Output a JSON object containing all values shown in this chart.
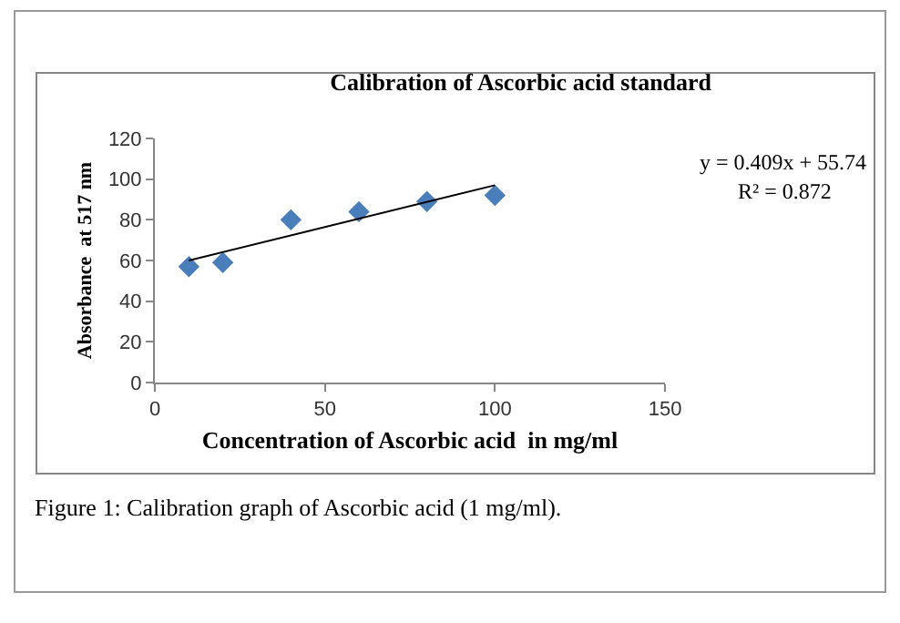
{
  "chart_data": {
    "type": "scatter",
    "title": "Calibration of Ascorbic acid standard",
    "xlabel": "Concentration of Ascorbic acid  in mg/ml",
    "ylabel": "Absorbance  at 517 nm",
    "series": [
      {
        "color": "#4a7ebb",
        "marker": "diamond",
        "x": [
          10,
          20,
          40,
          60,
          80,
          100
        ],
        "values": [
          57,
          59,
          80,
          84,
          89,
          92
        ]
      },
      {
        "type": "line",
        "color": "#000000",
        "line_style": "solid",
        "x": [
          10,
          100
        ],
        "values": [
          60,
          97
        ]
      }
    ],
    "xlim": [
      0,
      150
    ],
    "xticks": [
      0,
      50,
      100,
      150
    ],
    "ylim": [
      0,
      120
    ],
    "yticks": [
      0,
      20,
      40,
      60,
      80,
      100,
      120
    ],
    "annotations": [
      "y = 0.409x + 55.74",
      "R² = 0.872",
      "Figure 1: Calibration graph of Ascorbic acid (1 mg/ml)."
    ]
  }
}
